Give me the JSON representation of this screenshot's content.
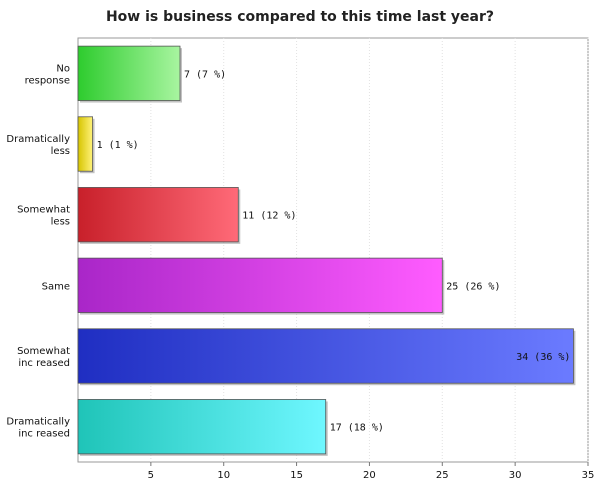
{
  "chart_data": {
    "type": "bar",
    "orientation": "horizontal",
    "title": "How is business compared to this time last year?",
    "xlabel": "",
    "ylabel": "",
    "xlim": [
      0,
      35
    ],
    "x_ticks": [
      5,
      10,
      15,
      20,
      25,
      30,
      35
    ],
    "grid": true,
    "legend": "none",
    "categories": [
      [
        "No",
        "response"
      ],
      [
        "Dramatically",
        "less"
      ],
      [
        "Somewhat",
        "less"
      ],
      [
        "Same"
      ],
      [
        "Somewhat",
        "inc reased"
      ],
      [
        "Dramatically",
        "inc reased"
      ]
    ],
    "values": [
      7,
      1,
      11,
      25,
      34,
      17
    ],
    "value_labels": [
      "7 (7 %)",
      "1 (1 %)",
      "11 (12 %)",
      "25 (26 %)",
      "34 (36 %)",
      "17 (18 %)"
    ],
    "bar_colors": [
      [
        "#2ecc2e",
        "#a8f5a0"
      ],
      [
        "#d6c400",
        "#fff27a"
      ],
      [
        "#c8202a",
        "#ff6a78"
      ],
      [
        "#a926c8",
        "#ff5cff"
      ],
      [
        "#1f2ec2",
        "#6b7bff"
      ],
      [
        "#1fc4b8",
        "#6ff7ff"
      ]
    ]
  }
}
